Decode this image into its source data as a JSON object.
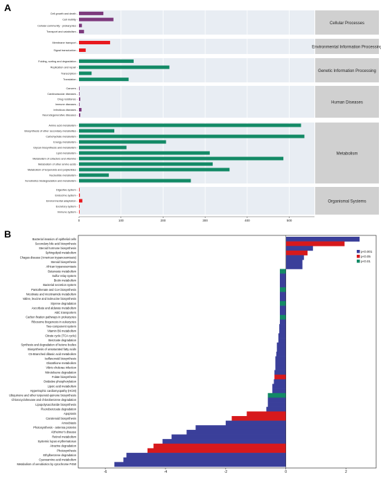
{
  "panels": {
    "a_label": "A",
    "b_label": "B"
  },
  "colors": {
    "Cellular Processes": "#7d3a7d",
    "Environmental Information Processing": "#e8191e",
    "Genetic Information Processing": "#138a66",
    "Human Diseases": "#7d3a7d",
    "Metabolism": "#138a66",
    "Organismal Systems": "#e8191e",
    "p<0.001": "#3a3f9a",
    "p<0.05": "#d7191c",
    "p<0.01": "#138a66"
  },
  "chart_data": [
    {
      "type": "bar",
      "orientation": "horizontal",
      "panel": "A",
      "xlim": [
        0,
        560
      ],
      "xticks": [
        0,
        100,
        200,
        300,
        400,
        500
      ],
      "grid": true,
      "groups": [
        {
          "name": "Cellular Processes",
          "categories": [
            "Cell growth and death",
            "Cell motility",
            "Cellular community - prokaryotes",
            "Transport and catabolism"
          ],
          "values": [
            58,
            82,
            7,
            12
          ]
        },
        {
          "name": "Environmental Information Processing",
          "categories": [
            "Membrane transport",
            "Signal transduction"
          ],
          "values": [
            74,
            16
          ]
        },
        {
          "name": "Genetic Information Processing",
          "categories": [
            "Folding, sorting and degradation",
            "Replication and repair",
            "Transcription",
            "Translation"
          ],
          "values": [
            130,
            215,
            30,
            118
          ]
        },
        {
          "name": "Human Diseases",
          "categories": [
            "Cancers",
            "Cardiovascular diseases",
            "Drug resistance",
            "Immune diseases",
            "Infectious diseases",
            "Neurodegenerative diseases"
          ],
          "values": [
            1,
            1,
            3,
            1,
            6,
            3
          ]
        },
        {
          "name": "Metabolism",
          "categories": [
            "Amino acid metabolism",
            "Biosynthesis of other secondary metabolites",
            "Carbohydrate metabolism",
            "Energy metabolism",
            "Glycan biosynthesis and metabolism",
            "Lipid metabolism",
            "Metabolism of cofactors and vitamins",
            "Metabolism of other amino acids",
            "Metabolism of terpenoids and polyketides",
            "Nucleotide metabolism",
            "Xenobiotics biodegradation and metabolism"
          ],
          "values": [
            528,
            84,
            536,
            207,
            113,
            311,
            486,
            318,
            358,
            71,
            266
          ]
        },
        {
          "name": "Organismal Systems",
          "categories": [
            "Digestive system",
            "Endocrine system",
            "Environmental adaptation",
            "Excretory system",
            "Immune system"
          ],
          "values": [
            1,
            2,
            8,
            1,
            1
          ]
        }
      ]
    },
    {
      "type": "bar",
      "orientation": "horizontal",
      "panel": "B",
      "xlim": [
        -6.9,
        3.0
      ],
      "xticks": [
        -6,
        -4,
        -2,
        0,
        2
      ],
      "legend_position": "right",
      "legend": [
        "p<0.001",
        "p<0.05",
        "p<0.01"
      ],
      "categories": [
        "Bacterial invasion of epithelial cells",
        "Secondary bile acid biosynthesis",
        "Steroid hormone biosynthesis",
        "Sphingolipid metabolism",
        "Chagas disease (American trypanosomiasis)",
        "Steroid biosynthesis",
        "African trypanosomiasis",
        "Butanoate metabolism",
        "Sulfur relay system",
        "Biotin metabolism",
        "Bacterial secretion system",
        "Pantothenate and CoA biosynthesis",
        "Nicotinate and nicotinamide metabolism",
        "Valine, leucine and isoleucine biosynthesis",
        "Styrene degradation",
        "Ascorbate and aldarate metabolism",
        "ABC transporters",
        "Carbon fixation pathways in prokaryotes",
        "Ribosome biogenesis in eukaryotes",
        "Two-component system",
        "Vitamin B6 metabolism",
        "Citrate cycle (TCA cycle)",
        "Benzoate degradation",
        "Synthesis and degradation of ketone bodies",
        "Biosynthesis of unsaturated fatty acids",
        "C5-Branched dibasic acid metabolism",
        "Isoflavonoid biosynthesis",
        "Glutathione metabolism",
        "Vibrio cholerae infection",
        "Nitrotoluene degradation",
        "Folate biosynthesis",
        "Oxidative phosphorylation",
        "Lipoic acid metabolism",
        "Hypertrophic cardiomyopathy (HCM)",
        "Ubiquinone and other terpenoid-quinone biosynthesis",
        "Chlorocyclohexane and chlorobenzene degradation",
        "Lipopolysaccharide biosynthesis",
        "Fluorobenzoate degradation",
        "Apoptosis",
        "Carotenoid biosynthesis",
        "Amoebiasis",
        "Photosynthesis - antenna proteins",
        "Alzheimer's disease",
        "Retinol metabolism",
        "Systemic lupus erythematosus",
        "Atrazine degradation",
        "Photosynthesis",
        "Ethylbenzene degradation",
        "Cyanoamino acid metabolism",
        "Metabolism of xenobiotics by cytochrome P450"
      ],
      "values": [
        2.45,
        1.95,
        0.9,
        0.72,
        0.6,
        0.55,
        0.55,
        -0.2,
        -0.2,
        -0.2,
        -0.2,
        -0.2,
        -0.2,
        -0.2,
        -0.2,
        -0.2,
        -0.2,
        -0.2,
        -0.2,
        -0.22,
        -0.22,
        -0.25,
        -0.25,
        -0.3,
        -0.3,
        -0.32,
        -0.35,
        -0.35,
        -0.35,
        -0.38,
        -0.38,
        -0.4,
        -0.45,
        -0.45,
        -0.6,
        -0.6,
        -0.6,
        -0.65,
        -1.3,
        -1.8,
        -2.0,
        -3.0,
        -3.3,
        -3.8,
        -4.1,
        -4.4,
        -4.6,
        -5.3,
        -5.4,
        -5.7
      ],
      "significance": [
        "p<0.001",
        "p<0.05",
        "p<0.001",
        "p<0.05",
        "p<0.001",
        "p<0.001",
        "p<0.001",
        "p<0.01",
        "p<0.001",
        "p<0.001",
        "p<0.001",
        "p<0.01",
        "p<0.001",
        "p<0.001",
        "p<0.01",
        "p<0.001",
        "p<0.001",
        "p<0.01",
        "p<0.001",
        "p<0.001",
        "p<0.001",
        "p<0.001",
        "p<0.001",
        "p<0.001",
        "p<0.001",
        "p<0.001",
        "p<0.001",
        "p<0.001",
        "p<0.001",
        "p<0.001",
        "p<0.05",
        "p<0.001",
        "p<0.001",
        "p<0.001",
        "p<0.01",
        "p<0.001",
        "p<0.001",
        "p<0.001",
        "p<0.05",
        "p<0.05",
        "p<0.001",
        "p<0.001",
        "p<0.001",
        "p<0.001",
        "p<0.001",
        "p<0.05",
        "p<0.05",
        "p<0.001",
        "p<0.001",
        "p<0.001"
      ]
    }
  ]
}
